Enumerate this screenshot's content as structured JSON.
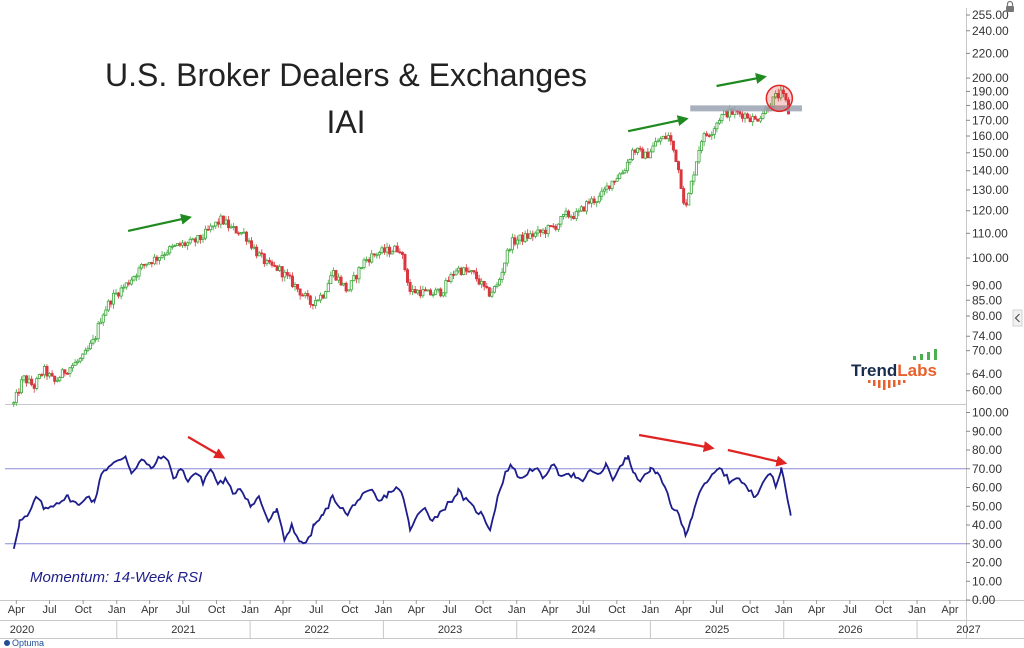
{
  "title": "U.S. Broker Dealers & Exchanges",
  "subtitle": "IAI",
  "brand": {
    "trend": "Trend",
    "labs": "Labs",
    "color_trend": "#1a2d4f",
    "color_labs": "#e8612c",
    "bars_green": "#4caf50"
  },
  "footer": {
    "optuma_label": "Optuma"
  },
  "colors": {
    "up": "#3aa73a",
    "down": "#d9363e",
    "rsi_line": "#1d1d8c",
    "rsi_ref_line": "#8a8ad8",
    "resistance": "#9aa3b3",
    "green_arrow": "#1f8a1f",
    "red_arrow": "#e02424",
    "circle": "#e02424"
  },
  "chart_data": [
    {
      "type": "candlestick",
      "name": "IAI",
      "scale": "log",
      "title": "U.S. Broker Dealers & Exchanges",
      "subtitle": "IAI",
      "y_ticks": [
        60,
        64,
        70,
        74,
        80,
        85,
        90,
        100,
        110,
        120,
        130,
        140,
        150,
        160,
        170,
        180,
        190,
        200,
        220,
        240,
        255
      ],
      "y_tick_labels": [
        "60.00",
        "64.00",
        "70.00",
        "74.00",
        "80.00",
        "85.00",
        "90.00",
        "100.00",
        "110.00",
        "120.00",
        "130.00",
        "140.00",
        "150.00",
        "160.00",
        "170.00",
        "180.00",
        "190.00",
        "200.00",
        "220.00",
        "240.00",
        "255.00"
      ],
      "ylim": [
        57,
        262
      ],
      "close_path": [
        [
          "2020-03-25",
          57
        ],
        [
          "2020-04-20",
          63
        ],
        [
          "2020-05-20",
          61
        ],
        [
          "2020-06-15",
          65
        ],
        [
          "2020-07-15",
          62
        ],
        [
          "2020-08-15",
          65
        ],
        [
          "2020-09-30",
          68
        ],
        [
          "2020-11-01",
          73
        ],
        [
          "2020-11-20",
          80
        ],
        [
          "2020-12-20",
          86
        ],
        [
          "2021-01-25",
          90
        ],
        [
          "2021-02-20",
          94
        ],
        [
          "2021-03-20",
          98
        ],
        [
          "2021-04-20",
          100
        ],
        [
          "2021-05-20",
          103
        ],
        [
          "2021-06-20",
          105
        ],
        [
          "2021-07-25",
          106
        ],
        [
          "2021-08-20",
          108
        ],
        [
          "2021-09-15",
          112
        ],
        [
          "2021-10-15",
          116
        ],
        [
          "2021-11-10",
          112
        ],
        [
          "2021-12-15",
          110
        ],
        [
          "2022-01-20",
          102
        ],
        [
          "2022-02-20",
          97
        ],
        [
          "2022-03-20",
          96
        ],
        [
          "2022-05-10",
          89
        ],
        [
          "2022-06-15",
          84
        ],
        [
          "2022-07-20",
          87
        ],
        [
          "2022-08-15",
          95
        ],
        [
          "2022-09-25",
          88
        ],
        [
          "2022-11-10",
          99
        ],
        [
          "2022-12-15",
          102
        ],
        [
          "2023-01-20",
          103
        ],
        [
          "2023-02-15",
          104
        ],
        [
          "2023-03-15",
          88
        ],
        [
          "2023-04-10",
          88
        ],
        [
          "2023-05-05",
          87
        ],
        [
          "2023-06-10",
          88
        ],
        [
          "2023-07-20",
          96
        ],
        [
          "2023-09-05",
          94
        ],
        [
          "2023-10-15",
          87
        ],
        [
          "2023-11-10",
          90
        ],
        [
          "2023-12-15",
          106
        ],
        [
          "2024-01-15",
          108
        ],
        [
          "2024-03-01",
          110
        ],
        [
          "2024-04-15",
          113
        ],
        [
          "2024-05-15",
          118
        ],
        [
          "2024-06-15",
          118
        ],
        [
          "2024-07-15",
          124
        ],
        [
          "2024-08-15",
          126
        ],
        [
          "2024-09-15",
          134
        ],
        [
          "2024-10-20",
          140
        ],
        [
          "2024-11-15",
          152
        ],
        [
          "2024-12-20",
          148
        ],
        [
          "2025-01-20",
          157
        ],
        [
          "2025-02-20",
          160
        ],
        [
          "2025-03-15",
          145
        ],
        [
          "2025-04-07",
          120
        ],
        [
          "2025-04-25",
          135
        ],
        [
          "2025-05-20",
          158
        ],
        [
          "2025-06-20",
          164
        ],
        [
          "2025-07-10",
          172
        ],
        [
          "2025-07-30",
          175
        ],
        [
          "2025-08-20",
          175
        ],
        [
          "2025-09-15",
          174
        ],
        [
          "2025-10-15",
          170
        ],
        [
          "2025-11-15",
          178
        ],
        [
          "2025-12-10",
          186
        ],
        [
          "2025-12-25",
          188
        ],
        [
          "2026-01-05",
          184
        ],
        [
          "2026-01-20",
          170
        ]
      ],
      "resistance_level": 178,
      "resistance_range": [
        "2025-04-20",
        "2026-02-20"
      ],
      "circle_at": {
        "date": "2025-12-20",
        "value": 185
      },
      "green_arrows": [
        {
          "from": [
            "2021-02-01",
            111
          ],
          "to": [
            "2021-07-20",
            117
          ]
        },
        {
          "from": [
            "2024-11-01",
            163
          ],
          "to": [
            "2025-04-10",
            171
          ]
        },
        {
          "from": [
            "2025-07-01",
            194
          ],
          "to": [
            "2025-11-10",
            201
          ]
        }
      ]
    },
    {
      "type": "line",
      "name": "RSI",
      "title": "Momentum: 14-Week RSI",
      "ylim": [
        0,
        104
      ],
      "y_ticks": [
        0,
        10,
        20,
        30,
        40,
        50,
        60,
        70,
        80,
        90,
        100
      ],
      "y_tick_labels": [
        "0.00",
        "10.00",
        "20.00",
        "30.00",
        "40.00",
        "50.00",
        "60.00",
        "70.00",
        "80.00",
        "90.00",
        "100.00"
      ],
      "ref_lines": [
        70,
        30
      ],
      "path": [
        [
          "2020-03-25",
          28
        ],
        [
          "2020-04-10",
          42
        ],
        [
          "2020-05-05",
          45
        ],
        [
          "2020-05-25",
          55
        ],
        [
          "2020-06-20",
          48
        ],
        [
          "2020-07-20",
          52
        ],
        [
          "2020-08-20",
          55
        ],
        [
          "2020-09-20",
          50
        ],
        [
          "2020-10-10",
          56
        ],
        [
          "2020-11-01",
          52
        ],
        [
          "2020-11-20",
          68
        ],
        [
          "2020-12-10",
          71
        ],
        [
          "2021-01-05",
          74
        ],
        [
          "2021-01-25",
          77
        ],
        [
          "2021-02-10",
          68
        ],
        [
          "2021-03-10",
          75
        ],
        [
          "2021-04-05",
          70
        ],
        [
          "2021-04-25",
          75
        ],
        [
          "2021-05-15",
          77
        ],
        [
          "2021-06-05",
          65
        ],
        [
          "2021-06-25",
          70
        ],
        [
          "2021-07-15",
          64
        ],
        [
          "2021-08-05",
          68
        ],
        [
          "2021-08-25",
          63
        ],
        [
          "2021-09-15",
          70
        ],
        [
          "2021-10-05",
          62
        ],
        [
          "2021-10-25",
          64
        ],
        [
          "2021-11-15",
          57
        ],
        [
          "2021-12-05",
          60
        ],
        [
          "2022-01-05",
          50
        ],
        [
          "2022-01-25",
          55
        ],
        [
          "2022-02-20",
          42
        ],
        [
          "2022-03-15",
          48
        ],
        [
          "2022-04-05",
          32
        ],
        [
          "2022-04-25",
          40
        ],
        [
          "2022-05-20",
          30
        ],
        [
          "2022-06-10",
          32
        ],
        [
          "2022-06-25",
          40
        ],
        [
          "2022-07-20",
          45
        ],
        [
          "2022-08-15",
          55
        ],
        [
          "2022-09-05",
          50
        ],
        [
          "2022-09-25",
          45
        ],
        [
          "2022-10-15",
          52
        ],
        [
          "2022-11-10",
          56
        ],
        [
          "2022-12-01",
          58
        ],
        [
          "2022-12-20",
          52
        ],
        [
          "2023-01-15",
          57
        ],
        [
          "2023-02-05",
          60
        ],
        [
          "2023-02-25",
          55
        ],
        [
          "2023-03-15",
          37
        ],
        [
          "2023-04-05",
          45
        ],
        [
          "2023-04-25",
          50
        ],
        [
          "2023-05-15",
          42
        ],
        [
          "2023-06-05",
          47
        ],
        [
          "2023-07-01",
          52
        ],
        [
          "2023-07-25",
          58
        ],
        [
          "2023-08-15",
          53
        ],
        [
          "2023-09-05",
          49
        ],
        [
          "2023-09-25",
          46
        ],
        [
          "2023-10-20",
          38
        ],
        [
          "2023-11-10",
          55
        ],
        [
          "2023-12-01",
          68
        ],
        [
          "2023-12-20",
          72
        ],
        [
          "2024-01-10",
          64
        ],
        [
          "2024-01-30",
          68
        ],
        [
          "2024-02-20",
          71
        ],
        [
          "2024-03-15",
          64
        ],
        [
          "2024-04-05",
          73
        ],
        [
          "2024-04-25",
          67
        ],
        [
          "2024-05-15",
          68
        ],
        [
          "2024-06-10",
          66
        ],
        [
          "2024-06-30",
          62
        ],
        [
          "2024-07-20",
          70
        ],
        [
          "2024-08-10",
          66
        ],
        [
          "2024-09-01",
          72
        ],
        [
          "2024-09-20",
          64
        ],
        [
          "2024-10-10",
          72
        ],
        [
          "2024-11-01",
          76
        ],
        [
          "2024-11-20",
          66
        ],
        [
          "2024-12-10",
          64
        ],
        [
          "2025-01-01",
          70
        ],
        [
          "2025-01-20",
          67
        ],
        [
          "2025-02-10",
          60
        ],
        [
          "2025-03-01",
          50
        ],
        [
          "2025-03-20",
          45
        ],
        [
          "2025-04-07",
          35
        ],
        [
          "2025-04-25",
          45
        ],
        [
          "2025-05-15",
          58
        ],
        [
          "2025-06-05",
          62
        ],
        [
          "2025-06-25",
          68
        ],
        [
          "2025-07-15",
          70
        ],
        [
          "2025-08-05",
          63
        ],
        [
          "2025-08-25",
          66
        ],
        [
          "2025-09-20",
          60
        ],
        [
          "2025-10-15",
          55
        ],
        [
          "2025-11-05",
          64
        ],
        [
          "2025-11-25",
          68
        ],
        [
          "2025-12-10",
          60
        ],
        [
          "2025-12-25",
          70
        ],
        [
          "2026-01-05",
          62
        ],
        [
          "2026-01-20",
          45
        ]
      ],
      "red_arrows": [
        {
          "from": [
            "2021-07-15",
            87
          ],
          "to": [
            "2021-10-20",
            76
          ]
        },
        {
          "from": [
            "2024-12-01",
            88
          ],
          "to": [
            "2025-06-20",
            81
          ]
        },
        {
          "from": [
            "2025-08-01",
            80
          ],
          "to": [
            "2026-01-05",
            73
          ]
        }
      ]
    }
  ],
  "time_axis": {
    "month_labels": [
      "Apr",
      "Jul",
      "Oct",
      "Jan",
      "Apr",
      "Jul",
      "Oct",
      "Jan",
      "Apr",
      "Jul",
      "Oct",
      "Jan",
      "Apr",
      "Jul",
      "Oct",
      "Jan",
      "Apr",
      "Jul",
      "Oct",
      "Jan",
      "Apr",
      "Jul",
      "Oct",
      "Jan",
      "Apr",
      "Jul",
      "Oct",
      "Jan",
      "Apr"
    ],
    "month_dates": [
      "2020-04-01",
      "2020-07-01",
      "2020-10-01",
      "2021-01-01",
      "2021-04-01",
      "2021-07-01",
      "2021-10-01",
      "2022-01-01",
      "2022-04-01",
      "2022-07-01",
      "2022-10-01",
      "2023-01-01",
      "2023-04-01",
      "2023-07-01",
      "2023-10-01",
      "2024-01-01",
      "2024-04-01",
      "2024-07-01",
      "2024-10-01",
      "2025-01-01",
      "2025-04-01",
      "2025-07-01",
      "2025-10-01",
      "2026-01-01",
      "2026-04-01",
      "2026-07-01",
      "2026-10-01",
      "2027-01-01",
      "2027-04-01"
    ],
    "years": [
      "2020",
      "2021",
      "2022",
      "2023",
      "2024",
      "2025",
      "2026",
      "2027"
    ]
  }
}
